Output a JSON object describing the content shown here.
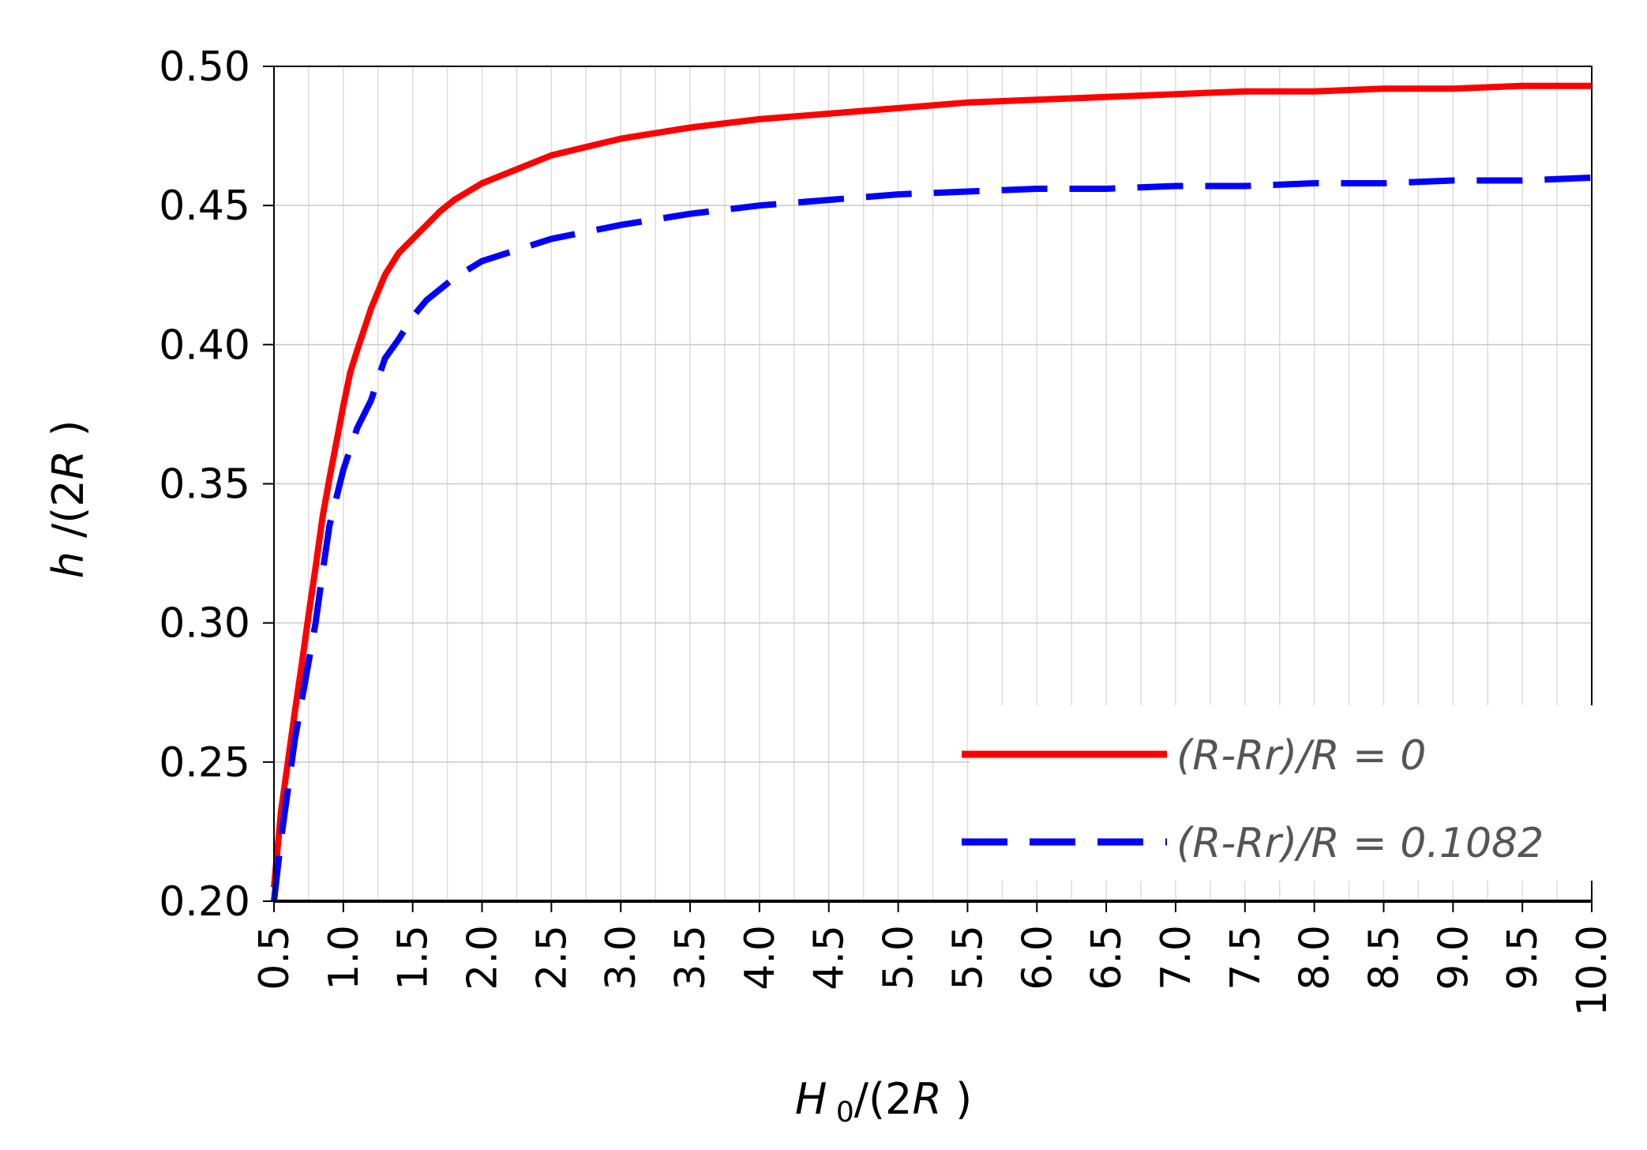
{
  "chart_data": {
    "type": "line",
    "xlabel": "H0/(2R)",
    "ylabel": "h/(2R)",
    "xlim": [
      0.5,
      10.0
    ],
    "ylim": [
      0.2,
      0.5
    ],
    "x_ticks": [
      "0.5",
      "1.0",
      "1.5",
      "2.0",
      "2.5",
      "3.0",
      "3.5",
      "4.0",
      "4.5",
      "5.0",
      "5.5",
      "6.0",
      "6.5",
      "7.0",
      "7.5",
      "8.0",
      "8.5",
      "9.0",
      "9.5",
      "10.0"
    ],
    "y_ticks": [
      "0.20",
      "0.25",
      "0.30",
      "0.35",
      "0.40",
      "0.45",
      "0.50"
    ],
    "grid": true,
    "legend_position": "bottom-right",
    "series": [
      {
        "name": "(R-Rr)/R = 0",
        "color": "#ff0000",
        "style": "solid",
        "x": [
          0.5,
          0.55,
          0.6,
          0.65,
          0.7,
          0.75,
          0.8,
          0.85,
          0.9,
          0.95,
          1.0,
          1.05,
          1.1,
          1.2,
          1.3,
          1.4,
          1.5,
          1.6,
          1.7,
          1.8,
          2.0,
          2.2,
          2.5,
          3.0,
          3.5,
          4.0,
          4.5,
          5.0,
          5.5,
          6.0,
          6.5,
          7.0,
          7.5,
          8.0,
          8.5,
          9.0,
          9.5,
          10.0
        ],
        "y": [
          0.205,
          0.232,
          0.25,
          0.268,
          0.285,
          0.303,
          0.32,
          0.338,
          0.352,
          0.365,
          0.378,
          0.39,
          0.398,
          0.413,
          0.425,
          0.433,
          0.438,
          0.443,
          0.448,
          0.452,
          0.458,
          0.462,
          0.468,
          0.474,
          0.478,
          0.481,
          0.483,
          0.485,
          0.487,
          0.488,
          0.489,
          0.49,
          0.491,
          0.491,
          0.492,
          0.492,
          0.493,
          0.493
        ]
      },
      {
        "name": "(R-Rr)/R = 0.1082",
        "color": "#0000ff",
        "style": "dashed",
        "x": [
          0.5,
          0.55,
          0.6,
          0.65,
          0.7,
          0.75,
          0.8,
          0.85,
          0.9,
          0.95,
          1.0,
          1.1,
          1.2,
          1.3,
          1.4,
          1.5,
          1.6,
          1.8,
          2.0,
          2.5,
          3.0,
          3.5,
          4.0,
          4.5,
          5.0,
          5.5,
          6.0,
          6.5,
          7.0,
          7.5,
          8.0,
          8.5,
          9.0,
          9.5,
          10.0
        ],
        "y": [
          0.2,
          0.222,
          0.24,
          0.258,
          0.272,
          0.286,
          0.3,
          0.318,
          0.335,
          0.345,
          0.355,
          0.37,
          0.38,
          0.395,
          0.402,
          0.41,
          0.416,
          0.424,
          0.43,
          0.438,
          0.443,
          0.447,
          0.45,
          0.452,
          0.454,
          0.455,
          0.456,
          0.456,
          0.457,
          0.457,
          0.458,
          0.458,
          0.459,
          0.459,
          0.46
        ]
      }
    ]
  }
}
